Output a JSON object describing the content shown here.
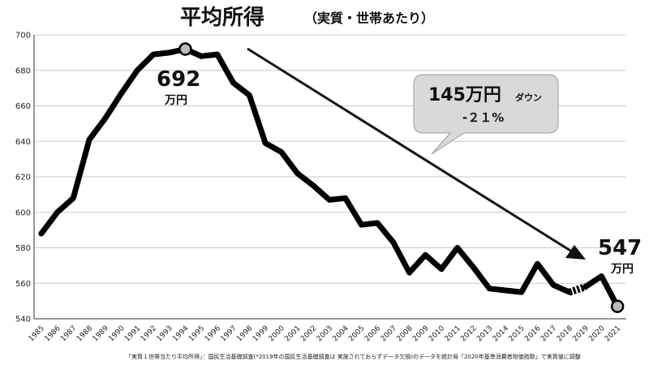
{
  "chart_data": {
    "type": "line",
    "title": "平均所得",
    "subtitle": "（実質・世帯あたり）",
    "ylim": [
      540,
      700
    ],
    "yticks": [
      540,
      560,
      580,
      600,
      620,
      640,
      660,
      680,
      700
    ],
    "grid": true,
    "x": [
      "1985",
      "1986",
      "1987",
      "1988",
      "1989",
      "1990",
      "1991",
      "1992",
      "1993",
      "1994",
      "1995",
      "1996",
      "1997",
      "1998",
      "1999",
      "2000",
      "2001",
      "2002",
      "2003",
      "2004",
      "2005",
      "2006",
      "2007",
      "2008",
      "2009",
      "2010",
      "2011",
      "2012",
      "2013",
      "2014",
      "2015",
      "2016",
      "2017",
      "2018",
      "2019",
      "2020",
      "2021"
    ],
    "series": [
      {
        "values": [
          588,
          600,
          608,
          641,
          653,
          667,
          680,
          689,
          690,
          692,
          688,
          689,
          673,
          666,
          639,
          634,
          622,
          615,
          607,
          608,
          593,
          594,
          583,
          566,
          576,
          568,
          580,
          569,
          557,
          556,
          555,
          571,
          559,
          555,
          558,
          564,
          547
        ],
        "missing_segment": [
          "2018",
          "2019"
        ]
      }
    ],
    "annotations": {
      "peak_value": "692",
      "peak_unit": "万円",
      "end_value": "547",
      "end_unit": "万円",
      "callout_main": "145万円",
      "callout_suffix": "ダウン",
      "callout_pct": "-２１%"
    },
    "footnote": "「実質１世帯当たり平均所得」：国民生活基礎調査(*2019年の国民生活基礎調査は 実施されておらずデータ欠損)のデータを統計局「2020年基準消費者物価指数」で実質値に調整"
  }
}
